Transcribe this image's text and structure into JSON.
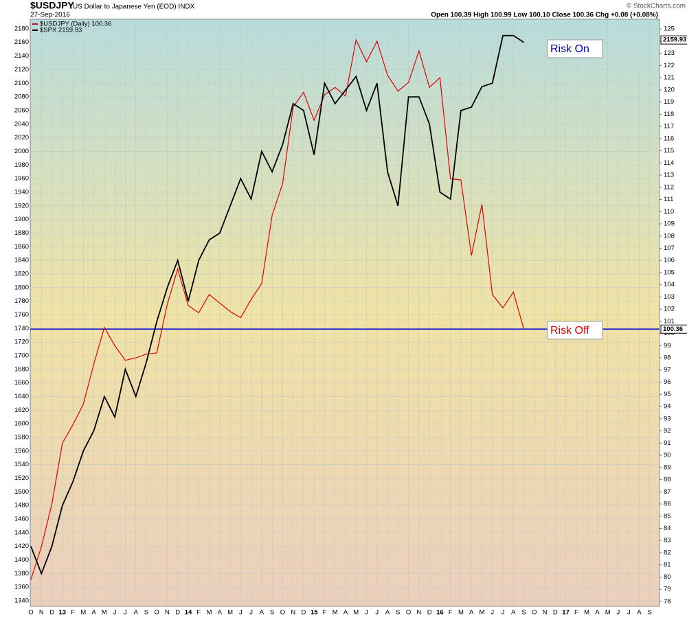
{
  "chart_data": {
    "type": "line",
    "title": "$USDJPY",
    "subtitle": "US Dollar to Japanese Yen (EOD) INDX",
    "date": "27-Sep-2016",
    "quote": "Open 100.39  High 100.99  Low 100.10  Close 100.36  Chg +0.08 (+0.08%)",
    "credit": "© StockCharts.com",
    "annotations": [
      {
        "text": "Risk On",
        "color": "#0000cc"
      },
      {
        "text": "Risk Off",
        "color": "#dd0000"
      }
    ],
    "reference_line": {
      "value": 100.36,
      "label": "100.36",
      "axis": "y2",
      "color": "#0000cc"
    },
    "x": [
      "2012-10",
      "2012-11",
      "2012-12",
      "2013-01",
      "2013-02",
      "2013-03",
      "2013-04",
      "2013-05",
      "2013-06",
      "2013-07",
      "2013-08",
      "2013-09",
      "2013-10",
      "2013-11",
      "2013-12",
      "2014-01",
      "2014-02",
      "2014-03",
      "2014-04",
      "2014-05",
      "2014-06",
      "2014-07",
      "2014-08",
      "2014-09",
      "2014-10",
      "2014-11",
      "2014-12",
      "2015-01",
      "2015-02",
      "2015-03",
      "2015-04",
      "2015-05",
      "2015-06",
      "2015-07",
      "2015-08",
      "2015-09",
      "2015-10",
      "2015-11",
      "2015-12",
      "2016-01",
      "2016-02",
      "2016-03",
      "2016-04",
      "2016-05",
      "2016-06",
      "2016-07",
      "2016-08",
      "2016-09"
    ],
    "series": [
      {
        "name": "$USDJPY (Daily) 100.36",
        "color": "#dd0000",
        "axis": "y2",
        "values": [
          79.8,
          82.5,
          86,
          91,
          92.5,
          94.2,
          97.5,
          100.5,
          99,
          97.8,
          98,
          98.3,
          98.4,
          102.4,
          105.3,
          102.3,
          101.7,
          103.2,
          102.5,
          101.8,
          101.3,
          102.8,
          104.1,
          109.7,
          112.3,
          118.6,
          119.8,
          117.5,
          119.6,
          120.2,
          119.5,
          124.1,
          122.3,
          124,
          121.2,
          119.9,
          120.6,
          123.2,
          120.2,
          121,
          112.7,
          112.6,
          106.4,
          110.6,
          103.2,
          102.1,
          103.4,
          100.36
        ]
      },
      {
        "name": "$SPX 2159.93",
        "color": "#000000",
        "values": [
          1420,
          1380,
          1420,
          1480,
          1515,
          1560,
          1590,
          1640,
          1610,
          1680,
          1640,
          1690,
          1750,
          1800,
          1840,
          1780,
          1840,
          1870,
          1880,
          1920,
          1960,
          1930,
          2000,
          1970,
          2010,
          2070,
          2060,
          1995,
          2100,
          2070,
          2090,
          2110,
          2060,
          2100,
          1970,
          1920,
          2080,
          2080,
          2040,
          1940,
          1930,
          2060,
          2065,
          2095,
          2100,
          2170,
          2170,
          2159.93
        ]
      }
    ],
    "last_value_labels": [
      {
        "value": 2159.93,
        "label": "2159.93",
        "axis": "y2_side_for_y"
      },
      {
        "value": 100.36,
        "label": "100.36"
      }
    ],
    "xlim": [
      "2012-10",
      "2017-10"
    ],
    "xticks": [
      {
        "value": "2012-10",
        "label": "O"
      },
      {
        "value": "2012-11",
        "label": "N"
      },
      {
        "value": "2012-12",
        "label": "D"
      },
      {
        "value": "2013-01",
        "label": "13"
      },
      {
        "value": "2013-02",
        "label": "F"
      },
      {
        "value": "2013-03",
        "label": "M"
      },
      {
        "value": "2013-04",
        "label": "A"
      },
      {
        "value": "2013-05",
        "label": "M"
      },
      {
        "value": "2013-06",
        "label": "J"
      },
      {
        "value": "2013-07",
        "label": "J"
      },
      {
        "value": "2013-08",
        "label": "A"
      },
      {
        "value": "2013-09",
        "label": "S"
      },
      {
        "value": "2013-10",
        "label": "O"
      },
      {
        "value": "2013-11",
        "label": "N"
      },
      {
        "value": "2013-12",
        "label": "D"
      },
      {
        "value": "2014-01",
        "label": "14"
      },
      {
        "value": "2014-02",
        "label": "F"
      },
      {
        "value": "2014-03",
        "label": "M"
      },
      {
        "value": "2014-04",
        "label": "A"
      },
      {
        "value": "2014-05",
        "label": "M"
      },
      {
        "value": "2014-06",
        "label": "J"
      },
      {
        "value": "2014-07",
        "label": "J"
      },
      {
        "value": "2014-08",
        "label": "A"
      },
      {
        "value": "2014-09",
        "label": "S"
      },
      {
        "value": "2014-10",
        "label": "O"
      },
      {
        "value": "2014-11",
        "label": "N"
      },
      {
        "value": "2014-12",
        "label": "D"
      },
      {
        "value": "2015-01",
        "label": "15"
      },
      {
        "value": "2015-02",
        "label": "F"
      },
      {
        "value": "2015-03",
        "label": "M"
      },
      {
        "value": "2015-04",
        "label": "A"
      },
      {
        "value": "2015-05",
        "label": "M"
      },
      {
        "value": "2015-06",
        "label": "J"
      },
      {
        "value": "2015-07",
        "label": "J"
      },
      {
        "value": "2015-08",
        "label": "A"
      },
      {
        "value": "2015-09",
        "label": "S"
      },
      {
        "value": "2015-10",
        "label": "O"
      },
      {
        "value": "2015-11",
        "label": "N"
      },
      {
        "value": "2015-12",
        "label": "D"
      },
      {
        "value": "2016-01",
        "label": "16"
      },
      {
        "value": "2016-02",
        "label": "F"
      },
      {
        "value": "2016-03",
        "label": "M"
      },
      {
        "value": "2016-04",
        "label": "A"
      },
      {
        "value": "2016-05",
        "label": "M"
      },
      {
        "value": "2016-06",
        "label": "J"
      },
      {
        "value": "2016-07",
        "label": "J"
      },
      {
        "value": "2016-08",
        "label": "A"
      },
      {
        "value": "2016-09",
        "label": "S"
      },
      {
        "value": "2016-10",
        "label": "O"
      },
      {
        "value": "2016-11",
        "label": "N"
      },
      {
        "value": "2016-12",
        "label": "D"
      },
      {
        "value": "2017-01",
        "label": "17"
      },
      {
        "value": "2017-02",
        "label": "F"
      },
      {
        "value": "2017-03",
        "label": "M"
      },
      {
        "value": "2017-04",
        "label": "A"
      },
      {
        "value": "2017-05",
        "label": "M"
      },
      {
        "value": "2017-06",
        "label": "J"
      },
      {
        "value": "2017-07",
        "label": "J"
      },
      {
        "value": "2017-08",
        "label": "A"
      },
      {
        "value": "2017-09",
        "label": "S"
      }
    ],
    "ylim": [
      1332,
      2194
    ],
    "yticks": [
      1340,
      1360,
      1380,
      1400,
      1420,
      1440,
      1460,
      1480,
      1500,
      1520,
      1540,
      1560,
      1580,
      1600,
      1620,
      1640,
      1660,
      1680,
      1700,
      1720,
      1740,
      1760,
      1780,
      1800,
      1820,
      1840,
      1860,
      1880,
      1900,
      1920,
      1940,
      1960,
      1980,
      2000,
      2020,
      2040,
      2060,
      2080,
      2100,
      2120,
      2140,
      2160,
      2180
    ],
    "y2lim": [
      77.6,
      125.8
    ],
    "y2ticks": [
      78,
      79,
      80,
      81,
      82,
      83,
      84,
      85,
      86,
      87,
      88,
      89,
      90,
      91,
      92,
      93,
      94,
      95,
      96,
      97,
      98,
      99,
      100,
      101,
      102,
      103,
      104,
      105,
      106,
      107,
      108,
      109,
      110,
      111,
      112,
      113,
      114,
      115,
      116,
      117,
      118,
      119,
      120,
      121,
      122,
      123,
      124,
      125
    ],
    "grid": true
  }
}
